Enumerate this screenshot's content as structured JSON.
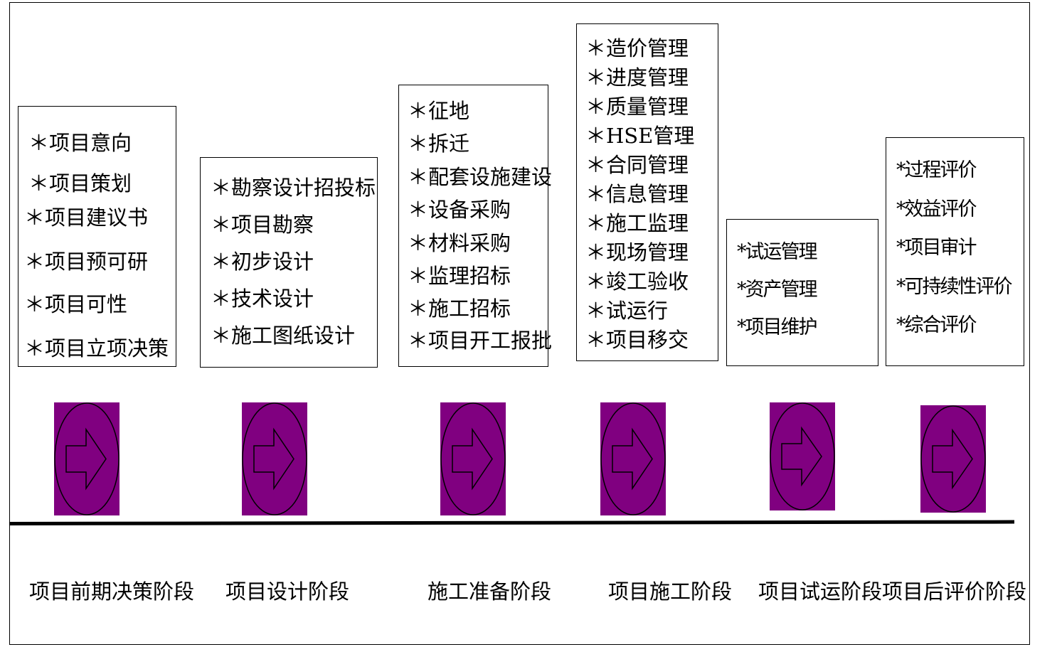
{
  "boxes": [
    {
      "items": [
        "＊项目意向",
        "＊项目策划",
        "＊项目建议书",
        "＊项目预可研",
        "＊项目可性",
        "＊项目立项决策"
      ]
    },
    {
      "items": [
        "＊勘察设计招投标",
        "＊项目勘察",
        "＊初步设计",
        "＊技术设计",
        "＊施工图纸设计"
      ]
    },
    {
      "items": [
        "＊征地",
        "＊拆迁",
        "＊配套设施建设",
        "＊设备采购",
        "＊材料采购",
        "＊监理招标",
        "＊施工招标",
        "＊项目开工报批"
      ]
    },
    {
      "items": [
        "＊造价管理",
        "＊进度管理",
        "＊质量管理",
        "＊HSE管理",
        "＊合同管理",
        "＊信息管理",
        "＊施工监理",
        "＊现场管理",
        "＊竣工验收",
        "＊试运行",
        "＊项目移交"
      ]
    },
    {
      "items": [
        "*试运管理",
        "*资产管理",
        "*项目维护"
      ]
    },
    {
      "items": [
        "*过程评价",
        "*效益评价",
        "*项目审计",
        "*可持续性评价",
        "*综合评价"
      ]
    }
  ],
  "stages": [
    "项目前期决策阶段",
    "项目设计阶段",
    "施工准备阶段",
    "项目施工阶段",
    "项目试运阶段",
    "项目后评价阶段"
  ],
  "colors": {
    "tile": "#800080",
    "line": "#000000",
    "background": "#ffffff"
  },
  "icons": {
    "tile_icon": "right-arrow-icon"
  }
}
